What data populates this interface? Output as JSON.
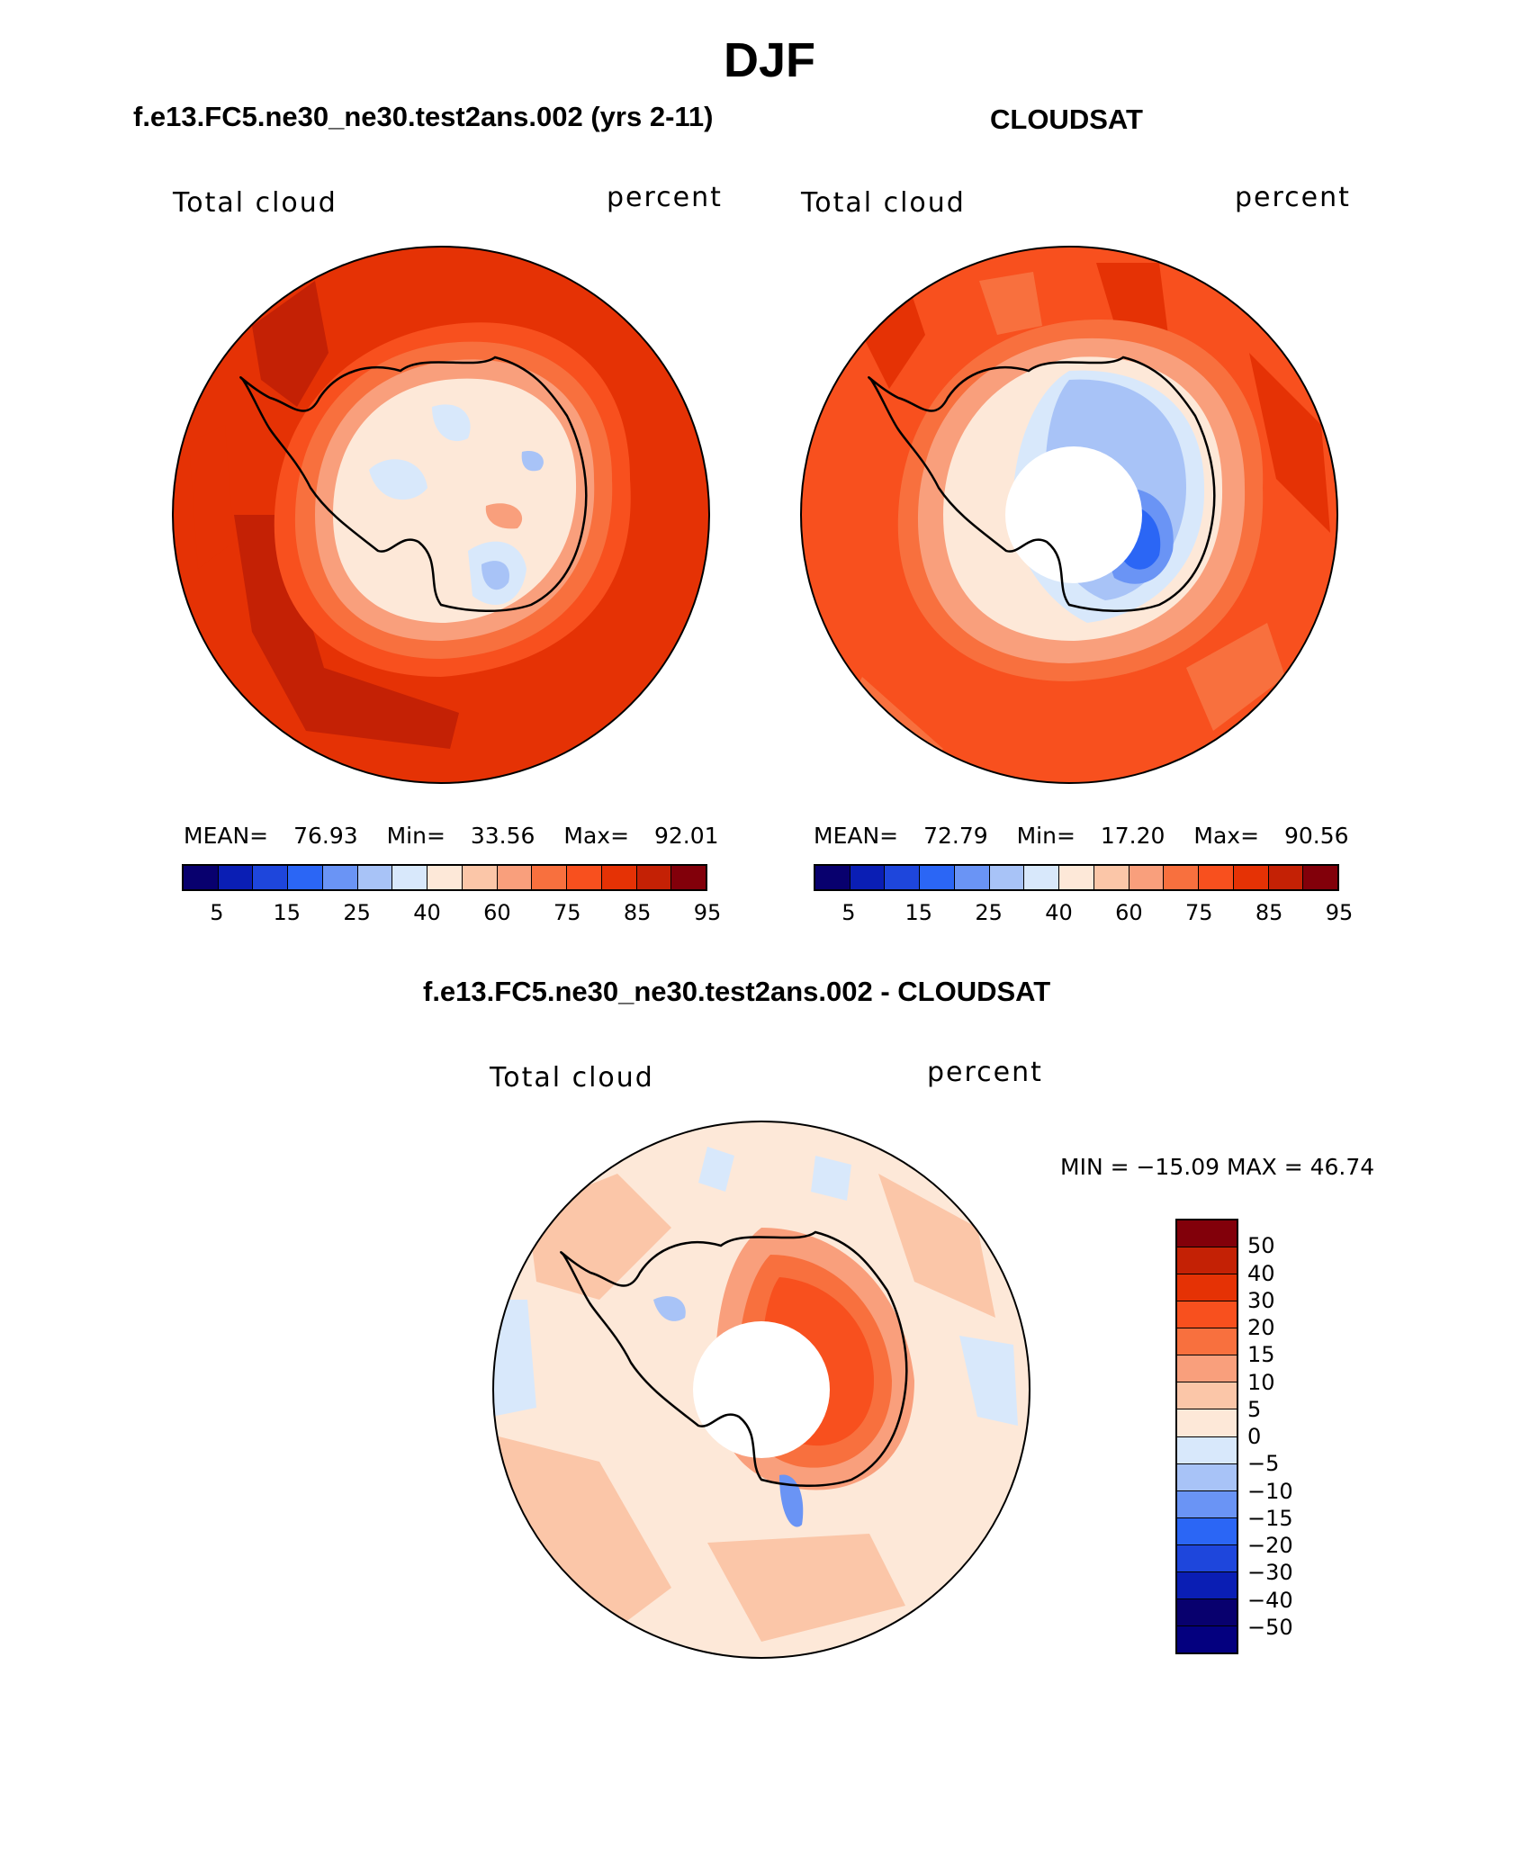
{
  "title": "DJF",
  "panels": [
    {
      "case_title": "f.e13.FC5.ne30_ne30.test2ans.002 (yrs 2-11)",
      "variable": "Total cloud",
      "units": "percent",
      "mean_label": "MEAN=",
      "mean": "76.93",
      "min_label": "Min=",
      "min": "33.56",
      "max_label": "Max=",
      "max": "92.01"
    },
    {
      "case_title": "CLOUDSAT",
      "variable": "Total cloud",
      "units": "percent",
      "mean_label": "MEAN=",
      "mean": "72.79",
      "min_label": "Min=",
      "min": "17.20",
      "max_label": "Max=",
      "max": "90.56"
    }
  ],
  "abs_colorbar": {
    "colors": [
      "#08006e",
      "#0a1eb4",
      "#1e46dc",
      "#2b66f5",
      "#6a94f5",
      "#a8c3f7",
      "#d8e8fb",
      "#fde8d8",
      "#fbc6a8",
      "#f99f7c",
      "#f8703e",
      "#f8501e",
      "#e53205",
      "#c42105",
      "#82000a"
    ],
    "tick_labels": [
      "5",
      "15",
      "25",
      "40",
      "60",
      "75",
      "85",
      "95"
    ]
  },
  "diff_panel": {
    "title": "f.e13.FC5.ne30_ne30.test2ans.002 - CLOUDSAT",
    "variable": "Total cloud",
    "units": "percent",
    "minmax": "MIN = −15.09 MAX =   46.74"
  },
  "diff_colorbar": {
    "colors": [
      "#82000a",
      "#c42105",
      "#e53205",
      "#f8501e",
      "#f8703e",
      "#f99f7c",
      "#fbc6a8",
      "#fde8d8",
      "#d8e8fb",
      "#a8c3f7",
      "#6a94f5",
      "#2b66f5",
      "#1e46dc",
      "#0a1eb4",
      "#08006e",
      "#04007f"
    ],
    "tick_labels": [
      "50",
      "40",
      "30",
      "20",
      "15",
      "10",
      "5",
      "0",
      "−5",
      "−10",
      "−15",
      "−20",
      "−30",
      "−40",
      "−50"
    ]
  },
  "chart_data": [
    {
      "type": "heatmap",
      "title": "f.e13.FC5.ne30_ne30.test2ans.002 (yrs 2-11)",
      "variable": "Total cloud",
      "units": "percent",
      "projection": "south polar stereographic",
      "mean": 76.93,
      "min": 33.56,
      "max": 92.01,
      "levels": [
        5,
        10,
        15,
        20,
        25,
        30,
        40,
        50,
        60,
        70,
        75,
        80,
        85,
        90,
        95
      ]
    },
    {
      "type": "heatmap",
      "title": "CLOUDSAT",
      "variable": "Total cloud",
      "units": "percent",
      "projection": "south polar stereographic",
      "mean": 72.79,
      "min": 17.2,
      "max": 90.56,
      "levels": [
        5,
        10,
        15,
        20,
        25,
        30,
        40,
        50,
        60,
        70,
        75,
        80,
        85,
        90,
        95
      ]
    },
    {
      "type": "heatmap",
      "title": "f.e13.FC5.ne30_ne30.test2ans.002 - CLOUDSAT",
      "variable": "Total cloud",
      "units": "percent",
      "projection": "south polar stereographic",
      "min": -15.09,
      "max": 46.74,
      "levels": [
        -50,
        -40,
        -30,
        -20,
        -15,
        -10,
        -5,
        0,
        5,
        10,
        15,
        20,
        30,
        40,
        50
      ]
    }
  ]
}
